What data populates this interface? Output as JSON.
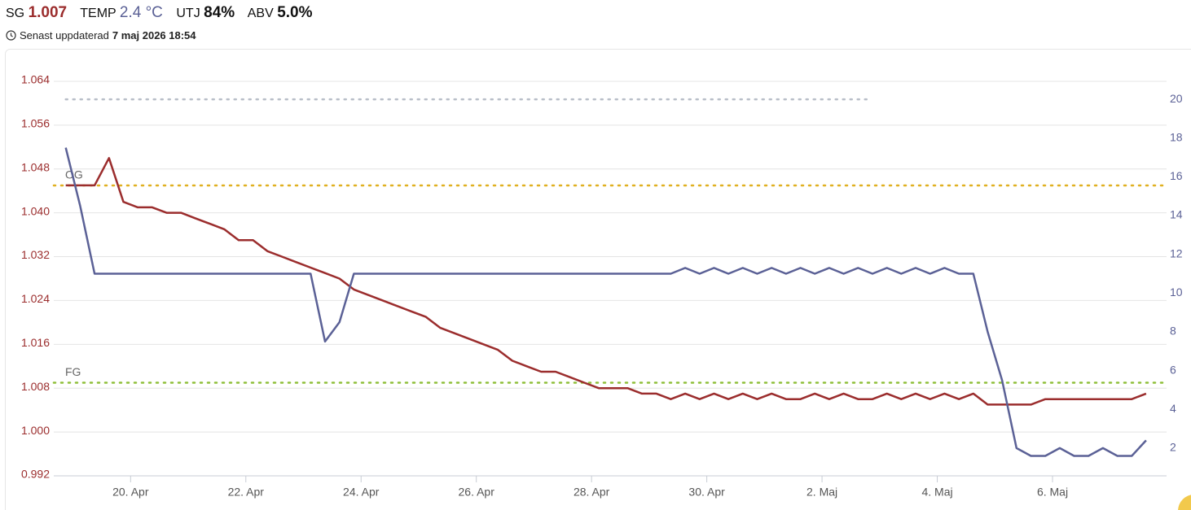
{
  "header": {
    "sg_label": "SG",
    "sg": "1.007",
    "temp_label": "TEMP",
    "temp": "2.4 °C",
    "utj_label": "UTJ",
    "utj": "84%",
    "abv_label": "ABV",
    "abv": "5.0%",
    "updated_label": "Senast uppdaterad",
    "updated": "7 maj 2026 18:54"
  },
  "chart_data": {
    "type": "line",
    "x": [
      "2026-04-18T21:00",
      "2026-04-19T03:00",
      "2026-04-19T09:00",
      "2026-04-19T15:00",
      "2026-04-19T21:00",
      "2026-04-20T03:00",
      "2026-04-20T09:00",
      "2026-04-20T15:00",
      "2026-04-20T21:00",
      "2026-04-21T03:00",
      "2026-04-21T09:00",
      "2026-04-21T15:00",
      "2026-04-21T21:00",
      "2026-04-22T03:00",
      "2026-04-22T09:00",
      "2026-04-22T15:00",
      "2026-04-22T21:00",
      "2026-04-23T03:00",
      "2026-04-23T09:00",
      "2026-04-23T15:00",
      "2026-04-23T21:00",
      "2026-04-24T03:00",
      "2026-04-24T09:00",
      "2026-04-24T15:00",
      "2026-04-24T21:00",
      "2026-04-25T03:00",
      "2026-04-25T09:00",
      "2026-04-25T15:00",
      "2026-04-25T21:00",
      "2026-04-26T03:00",
      "2026-04-26T09:00",
      "2026-04-26T15:00",
      "2026-04-26T21:00",
      "2026-04-27T03:00",
      "2026-04-27T09:00",
      "2026-04-27T15:00",
      "2026-04-27T21:00",
      "2026-04-28T03:00",
      "2026-04-28T09:00",
      "2026-04-28T15:00",
      "2026-04-28T21:00",
      "2026-04-29T03:00",
      "2026-04-29T09:00",
      "2026-04-29T15:00",
      "2026-04-29T21:00",
      "2026-04-30T03:00",
      "2026-04-30T09:00",
      "2026-04-30T15:00",
      "2026-04-30T21:00",
      "2026-05-01T03:00",
      "2026-05-01T09:00",
      "2026-05-01T15:00",
      "2026-05-01T21:00",
      "2026-05-02T03:00",
      "2026-05-02T09:00",
      "2026-05-02T15:00",
      "2026-05-02T21:00",
      "2026-05-03T03:00",
      "2026-05-03T09:00",
      "2026-05-03T15:00",
      "2026-05-03T21:00",
      "2026-05-04T03:00",
      "2026-05-04T09:00",
      "2026-05-04T15:00",
      "2026-05-04T21:00",
      "2026-05-05T03:00",
      "2026-05-05T09:00",
      "2026-05-05T15:00",
      "2026-05-05T21:00",
      "2026-05-06T03:00",
      "2026-05-06T09:00",
      "2026-05-06T15:00",
      "2026-05-06T21:00",
      "2026-05-07T03:00",
      "2026-05-07T09:00",
      "2026-05-07T15:00"
    ],
    "series": [
      {
        "name": "SG",
        "color": "#9b2d2d",
        "values": [
          1.045,
          1.045,
          1.045,
          1.05,
          1.042,
          1.041,
          1.041,
          1.04,
          1.04,
          1.039,
          1.038,
          1.037,
          1.035,
          1.035,
          1.033,
          1.032,
          1.031,
          1.03,
          1.029,
          1.028,
          1.026,
          1.025,
          1.024,
          1.023,
          1.022,
          1.021,
          1.019,
          1.018,
          1.017,
          1.016,
          1.015,
          1.013,
          1.012,
          1.011,
          1.011,
          1.01,
          1.009,
          1.008,
          1.008,
          1.008,
          1.007,
          1.007,
          1.006,
          1.007,
          1.006,
          1.007,
          1.006,
          1.007,
          1.006,
          1.007,
          1.006,
          1.006,
          1.007,
          1.006,
          1.007,
          1.006,
          1.006,
          1.007,
          1.006,
          1.007,
          1.006,
          1.007,
          1.006,
          1.007,
          1.005,
          1.005,
          1.005,
          1.005,
          1.006,
          1.006,
          1.006,
          1.006,
          1.006,
          1.006,
          1.006,
          1.007
        ]
      },
      {
        "name": "TEMP",
        "color": "#5b6196",
        "axis": "y2",
        "values": [
          17.5,
          14.5,
          11,
          11,
          11,
          11,
          11,
          11,
          11,
          11,
          11,
          11,
          11,
          11,
          11,
          11,
          11,
          11,
          7.5,
          8.5,
          11,
          11,
          11,
          11,
          11,
          11,
          11,
          11,
          11,
          11,
          11,
          11,
          11,
          11,
          11,
          11,
          11,
          11,
          11,
          11,
          11,
          11,
          11,
          11.3,
          11,
          11.3,
          11,
          11.3,
          11,
          11.3,
          11,
          11.3,
          11,
          11.3,
          11,
          11.3,
          11,
          11.3,
          11,
          11.3,
          11,
          11.3,
          11,
          11,
          8,
          5.5,
          2,
          1.6,
          1.6,
          2,
          1.6,
          1.6,
          2,
          1.6,
          1.6,
          2.4
        ]
      }
    ],
    "reference_lines": [
      {
        "value": 1.045,
        "label": "OG",
        "color": "#e0b020"
      },
      {
        "value": 1.009,
        "label": "FG",
        "color": "#8fbf3a"
      },
      {
        "value": 20,
        "axis": "y2",
        "color": "#b8bec8",
        "x_range": [
          "2026-04-18T21:00",
          "2026-05-02T19:00"
        ]
      }
    ],
    "xlim": [
      "2026-04-18T16:00",
      "2026-05-07T23:30"
    ],
    "xticks": [
      {
        "value": "2026-04-20T00:00",
        "label": "20. Apr"
      },
      {
        "value": "2026-04-22T00:00",
        "label": "22. Apr"
      },
      {
        "value": "2026-04-24T00:00",
        "label": "24. Apr"
      },
      {
        "value": "2026-04-26T00:00",
        "label": "26. Apr"
      },
      {
        "value": "2026-04-28T00:00",
        "label": "28. Apr"
      },
      {
        "value": "2026-04-30T00:00",
        "label": "30. Apr"
      },
      {
        "value": "2026-05-02T00:00",
        "label": "2. Maj"
      },
      {
        "value": "2026-05-04T00:00",
        "label": "4. Maj"
      },
      {
        "value": "2026-05-06T00:00",
        "label": "6. Maj"
      }
    ],
    "ylim": [
      0.992,
      1.068
    ],
    "yticks": [
      0.992,
      {
        "value": 1,
        "label": "1.000"
      },
      1.008,
      1.016,
      1.024,
      1.032,
      {
        "value": 1.04,
        "label": "1.040"
      },
      1.048,
      1.056,
      1.064
    ],
    "y2lim": [
      0.57,
      22.06
    ],
    "y2ticks": [
      2,
      4,
      6,
      8,
      10,
      12,
      14,
      16,
      18,
      20
    ],
    "grid": true
  }
}
